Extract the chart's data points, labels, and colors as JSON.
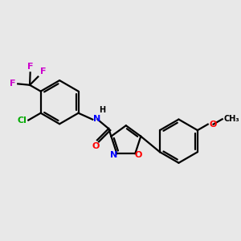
{
  "bg_color": "#e8e8e8",
  "bond_color": "#000000",
  "atom_colors": {
    "F": "#cc00cc",
    "Cl": "#00aa00",
    "N": "#0000ff",
    "O": "#ff0000",
    "H": "#000000"
  },
  "bond_lw": 1.6,
  "font_size": 8,
  "figsize": [
    3.0,
    3.0
  ],
  "dpi": 100
}
